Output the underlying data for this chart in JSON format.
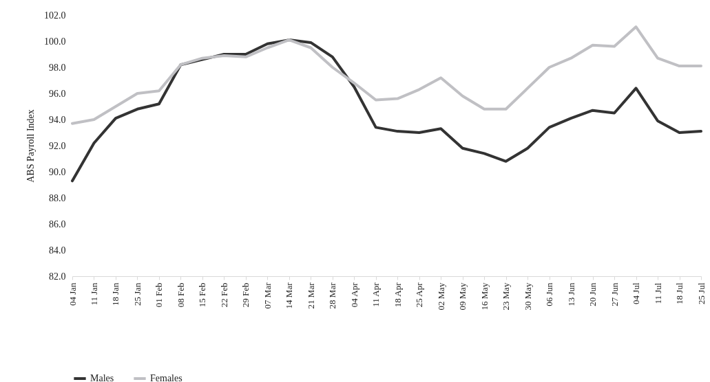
{
  "chart_data": {
    "type": "line",
    "ylabel": "ABS Payroll Index",
    "categories": [
      "04 Jan",
      "11 Jan",
      "18 Jan",
      "25 Jan",
      "01 Feb",
      "08 Feb",
      "15 Feb",
      "22 Feb",
      "29 Feb",
      "07 Mar",
      "14 Mar",
      "21 Mar",
      "28 Mar",
      "04 Apr",
      "11 Apr",
      "18 Apr",
      "25 Apr",
      "02 May",
      "09 May",
      "16 May",
      "23 May",
      "30 May",
      "06 Jun",
      "13 Jun",
      "20 Jun",
      "27 Jun",
      "04 Jul",
      "11 Jul",
      "18 Jul",
      "25 Jul"
    ],
    "series": [
      {
        "name": "Males",
        "color": "#333333",
        "values": [
          89.3,
          92.2,
          94.1,
          94.8,
          95.2,
          98.2,
          98.6,
          99.0,
          99.0,
          99.8,
          100.1,
          99.9,
          98.8,
          96.5,
          93.4,
          93.1,
          93.0,
          93.3,
          91.8,
          91.4,
          90.8,
          91.8,
          93.4,
          94.1,
          94.7,
          94.5,
          96.4,
          93.9,
          93.0,
          93.1
        ]
      },
      {
        "name": "Females",
        "color": "#c0c0c4",
        "values": [
          93.7,
          94.0,
          95.0,
          96.0,
          96.2,
          98.2,
          98.7,
          98.9,
          98.8,
          99.5,
          100.1,
          99.5,
          98.0,
          96.8,
          95.5,
          95.6,
          96.3,
          97.2,
          95.8,
          94.8,
          94.8,
          96.4,
          98.0,
          98.7,
          99.7,
          99.6,
          101.1,
          98.7,
          98.1,
          98.1
        ]
      }
    ],
    "ylim": [
      82,
      102
    ],
    "yticks": [
      {
        "value": 82,
        "label": "82.0"
      },
      {
        "value": 84,
        "label": "84.0"
      },
      {
        "value": 86,
        "label": "86.0"
      },
      {
        "value": 88,
        "label": "88.0"
      },
      {
        "value": 90,
        "label": "90.0"
      },
      {
        "value": 92,
        "label": "92.0"
      },
      {
        "value": 94,
        "label": "94.0"
      },
      {
        "value": 96,
        "label": "96.0"
      },
      {
        "value": 98,
        "label": "98.0"
      },
      {
        "value": 100,
        "label": "100.0"
      },
      {
        "value": 102,
        "label": "102.0"
      }
    ],
    "grid": false,
    "legend": "bottom",
    "line_style": "solid",
    "marker": "none"
  }
}
